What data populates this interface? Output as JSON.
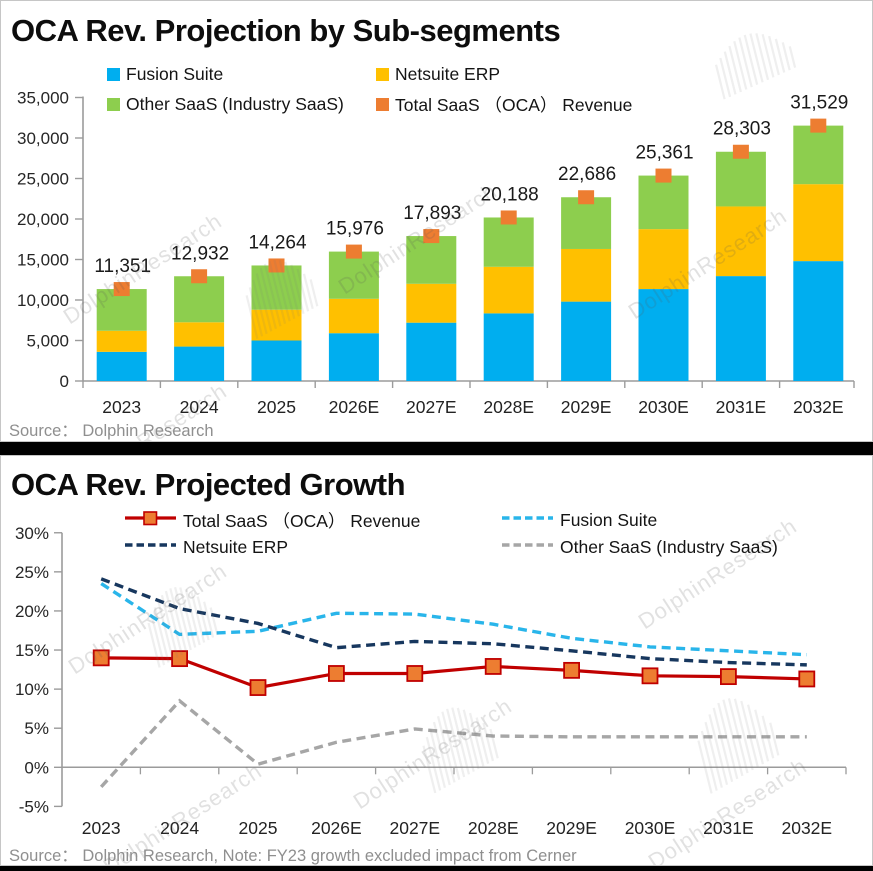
{
  "watermark": {
    "text": "DolphinResearch"
  },
  "chart_data": [
    {
      "type": "bar",
      "stacked": true,
      "title": "OCA Rev. Projection by Sub-segments",
      "source": "Source：  Dolphin Research",
      "categories": [
        "2023",
        "2024",
        "2025",
        "2026E",
        "2027E",
        "2028E",
        "2029E",
        "2030E",
        "2031E",
        "2032E"
      ],
      "series": [
        {
          "name": "Fusion Suite",
          "color": "#00AEEF",
          "values": [
            3600,
            4250,
            5000,
            5900,
            7200,
            8350,
            9800,
            11350,
            12950,
            14800
          ]
        },
        {
          "name": "Netsuite ERP",
          "color": "#FFC000",
          "values": [
            2600,
            3000,
            3800,
            4250,
            4800,
            5750,
            6500,
            7400,
            8600,
            9500
          ]
        },
        {
          "name": "Other SaaS (Industry SaaS)",
          "color": "#8DCE4E",
          "values": [
            5151,
            5682,
            5464,
            5826,
            5893,
            6088,
            6386,
            6611,
            6753,
            7229
          ]
        }
      ],
      "total_marker": {
        "name": "Total SaaS （OCA） Revenue",
        "color": "#ED7D31",
        "values": [
          11351,
          12932,
          14264,
          15976,
          17893,
          20188,
          22686,
          25361,
          28303,
          31529
        ],
        "labels": [
          "11,351",
          "12,932",
          "14,264",
          "15,976",
          "17,893",
          "20,188",
          "22,686",
          "25,361",
          "28,303",
          "31,529"
        ]
      },
      "ylim": [
        0,
        35000
      ],
      "ytick_step": 5000,
      "ytick_labels": [
        "0",
        "5,000",
        "10,000",
        "15,000",
        "20,000",
        "25,000",
        "30,000",
        "35,000"
      ],
      "grid": false,
      "legend_position": "top"
    },
    {
      "type": "line",
      "title": "OCA Rev. Projected Growth",
      "source": "Source：  Dolphin Research, Note: FY23 growth excluded impact from Cerner",
      "categories": [
        "2023",
        "2024",
        "2025",
        "2026E",
        "2027E",
        "2028E",
        "2029E",
        "2030E",
        "2031E",
        "2032E"
      ],
      "series": [
        {
          "name": "Total SaaS （OCA） Revenue",
          "color": "#C00000",
          "style": "solid",
          "marker": "square",
          "marker_fill": "#ED7D31",
          "values": [
            14.0,
            13.9,
            10.2,
            12.0,
            12.0,
            12.9,
            12.4,
            11.7,
            11.6,
            11.3
          ]
        },
        {
          "name": "Fusion Suite",
          "color": "#29B5EA",
          "style": "dashed",
          "values": [
            23.5,
            17.0,
            17.4,
            19.7,
            19.6,
            18.3,
            16.5,
            15.4,
            14.9,
            14.4
          ]
        },
        {
          "name": "Netsuite ERP",
          "color": "#17375E",
          "style": "dashed",
          "values": [
            24.1,
            20.3,
            18.4,
            15.3,
            16.1,
            15.8,
            14.9,
            13.9,
            13.4,
            13.1
          ]
        },
        {
          "name": "Other SaaS (Industry SaaS)",
          "color": "#A6A6A6",
          "style": "dashed",
          "values": [
            -2.5,
            8.5,
            0.4,
            3.2,
            4.9,
            4.0,
            3.9,
            3.9,
            3.9,
            3.9
          ]
        }
      ],
      "ylim": [
        -5,
        30
      ],
      "ytick_step": 5,
      "ytick_labels": [
        "-5%",
        "0%",
        "5%",
        "10%",
        "15%",
        "20%",
        "25%",
        "30%"
      ],
      "grid": false,
      "legend_position": "top"
    }
  ]
}
